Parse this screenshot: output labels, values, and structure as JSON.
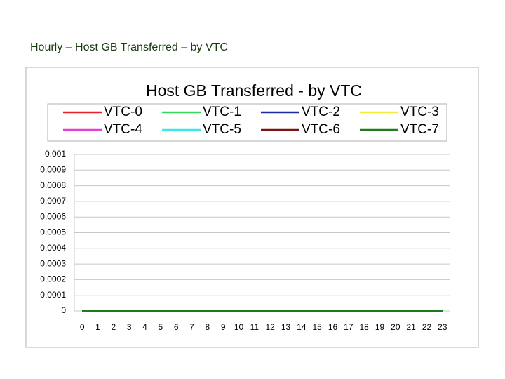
{
  "page_title": "Hourly – Host GB Transferred – by VTC",
  "chart_data": {
    "type": "line",
    "title": "Host GB Transferred - by VTC",
    "categories": [
      "0",
      "1",
      "2",
      "3",
      "4",
      "5",
      "6",
      "7",
      "8",
      "9",
      "10",
      "11",
      "12",
      "13",
      "14",
      "15",
      "16",
      "17",
      "18",
      "19",
      "20",
      "21",
      "22",
      "23"
    ],
    "series": [
      {
        "name": "VTC-0",
        "color": "#e8202a",
        "values": [
          0,
          0,
          0,
          0,
          0,
          0,
          0,
          0,
          0,
          0,
          0,
          0,
          0,
          0,
          0,
          0,
          0,
          0,
          0,
          0,
          0,
          0,
          0,
          0
        ]
      },
      {
        "name": "VTC-1",
        "color": "#33d957",
        "values": [
          0,
          0,
          0,
          0,
          0,
          0,
          0,
          0,
          0,
          0,
          0,
          0,
          0,
          0,
          0,
          0,
          0,
          0,
          0,
          0,
          0,
          0,
          0,
          0
        ]
      },
      {
        "name": "VTC-2",
        "color": "#1c2aa0",
        "values": [
          0,
          0,
          0,
          0,
          0,
          0,
          0,
          0,
          0,
          0,
          0,
          0,
          0,
          0,
          0,
          0,
          0,
          0,
          0,
          0,
          0,
          0,
          0,
          0
        ]
      },
      {
        "name": "VTC-3",
        "color": "#f5ec3a",
        "values": [
          0,
          0,
          0,
          0,
          0,
          0,
          0,
          0,
          0,
          0,
          0,
          0,
          0,
          0,
          0,
          0,
          0,
          0,
          0,
          0,
          0,
          0,
          0,
          0
        ]
      },
      {
        "name": "VTC-4",
        "color": "#e23fd8",
        "values": [
          0,
          0,
          0,
          0,
          0,
          0,
          0,
          0,
          0,
          0,
          0,
          0,
          0,
          0,
          0,
          0,
          0,
          0,
          0,
          0,
          0,
          0,
          0,
          0
        ]
      },
      {
        "name": "VTC-5",
        "color": "#3fe8e8",
        "values": [
          0,
          0,
          0,
          0,
          0,
          0,
          0,
          0,
          0,
          0,
          0,
          0,
          0,
          0,
          0,
          0,
          0,
          0,
          0,
          0,
          0,
          0,
          0,
          0
        ]
      },
      {
        "name": "VTC-6",
        "color": "#7a1414",
        "values": [
          0,
          0,
          0,
          0,
          0,
          0,
          0,
          0,
          0,
          0,
          0,
          0,
          0,
          0,
          0,
          0,
          0,
          0,
          0,
          0,
          0,
          0,
          0,
          0
        ]
      },
      {
        "name": "VTC-7",
        "color": "#1f7a1f",
        "values": [
          0,
          0,
          0,
          0,
          0,
          0,
          0,
          0,
          0,
          0,
          0,
          0,
          0,
          0,
          0,
          0,
          0,
          0,
          0,
          0,
          0,
          0,
          0,
          0
        ]
      }
    ],
    "ylim": [
      0,
      0.001
    ],
    "yticks": [
      0,
      0.0001,
      0.0002,
      0.0003,
      0.0004,
      0.0005,
      0.0006,
      0.0007,
      0.0008,
      0.0009,
      0.001
    ],
    "grid": true
  }
}
